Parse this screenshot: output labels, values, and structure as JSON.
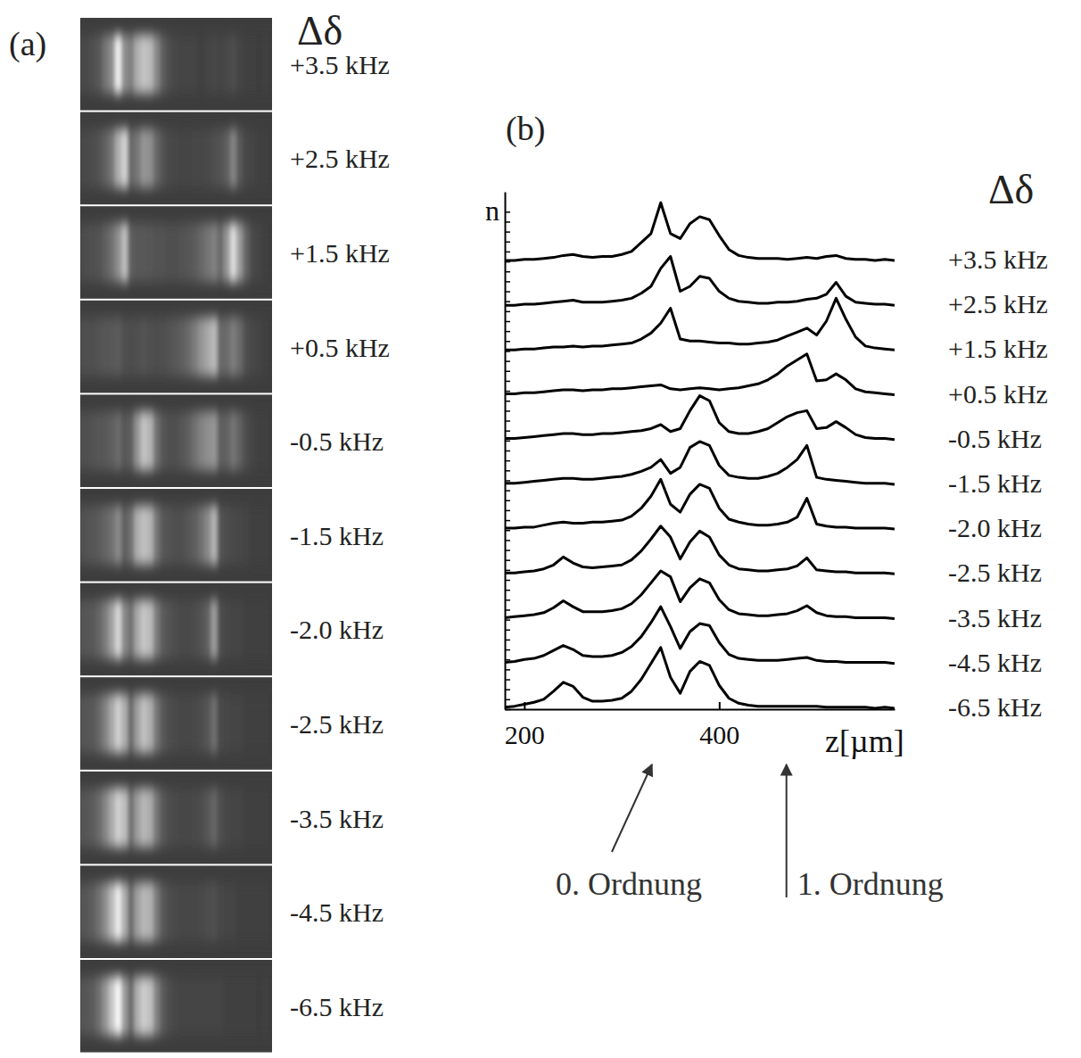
{
  "chart_data": {
    "type": "line",
    "panel_labels": [
      "(a)",
      "(b)"
    ],
    "legend_title": "Δδ",
    "xlabel": "z[µm]",
    "ylabel": "n",
    "xlim": [
      180,
      580
    ],
    "xticks": [
      200,
      400
    ],
    "ylim": [
      0,
      52
    ],
    "yticks": [
      0,
      1,
      2,
      3,
      4,
      5,
      6,
      7,
      8,
      9,
      10,
      11,
      12,
      13,
      14,
      15,
      16,
      17,
      18,
      19,
      20,
      21,
      22,
      23,
      24,
      25,
      26,
      27,
      28,
      29,
      30,
      31,
      32,
      33,
      34,
      35,
      36,
      37,
      38,
      39,
      40,
      41,
      42,
      43,
      44,
      45,
      46,
      47,
      48,
      49,
      50
    ],
    "tick_labels": "x",
    "x": [
      180,
      190,
      200,
      210,
      220,
      230,
      240,
      250,
      260,
      270,
      280,
      290,
      300,
      310,
      320,
      330,
      340,
      350,
      360,
      370,
      380,
      390,
      400,
      410,
      420,
      430,
      440,
      450,
      460,
      470,
      480,
      490,
      500,
      510,
      520,
      530,
      540,
      550,
      560,
      570,
      580
    ],
    "series": [
      {
        "name": "+3.5 kHz",
        "color": "#000000",
        "values": [
          0.1,
          0.1,
          0.2,
          0.2,
          0.3,
          0.4,
          0.6,
          0.7,
          0.5,
          0.4,
          0.5,
          0.5,
          0.7,
          1.0,
          1.9,
          2.8,
          5.9,
          2.8,
          2.3,
          3.8,
          4.5,
          4.2,
          2.6,
          1.2,
          0.6,
          0.4,
          0.3,
          0.3,
          0.3,
          0.2,
          0.3,
          0.4,
          0.3,
          0.5,
          0.6,
          0.3,
          0.2,
          0.2,
          0.1,
          0.2,
          0.1
        ]
      },
      {
        "name": "+2.5 kHz",
        "color": "#000000",
        "values": [
          0.1,
          0.1,
          0.2,
          0.2,
          0.3,
          0.4,
          0.5,
          0.6,
          0.4,
          0.4,
          0.4,
          0.5,
          0.6,
          0.8,
          1.3,
          2.0,
          3.8,
          5.0,
          1.5,
          2.0,
          3.0,
          2.8,
          1.5,
          0.8,
          0.5,
          0.4,
          0.3,
          0.3,
          0.4,
          0.4,
          0.5,
          0.7,
          0.8,
          1.2,
          2.4,
          1.0,
          0.4,
          0.3,
          0.2,
          0.2,
          0.1
        ]
      },
      {
        "name": "+1.5 kHz",
        "color": "#000000",
        "values": [
          0.1,
          0.1,
          0.2,
          0.2,
          0.3,
          0.4,
          0.4,
          0.5,
          0.4,
          0.5,
          0.5,
          0.6,
          0.7,
          0.8,
          1.2,
          1.8,
          2.8,
          4.3,
          1.2,
          1.0,
          1.0,
          0.9,
          0.8,
          0.8,
          0.7,
          0.7,
          0.8,
          0.9,
          1.1,
          1.5,
          1.9,
          2.3,
          1.6,
          3.0,
          5.3,
          3.2,
          1.4,
          0.5,
          0.3,
          0.2,
          0.1
        ]
      },
      {
        "name": "+0.5 kHz",
        "color": "#000000",
        "values": [
          0.2,
          0.2,
          0.3,
          0.3,
          0.4,
          0.5,
          0.6,
          0.6,
          0.5,
          0.6,
          0.6,
          0.7,
          0.7,
          0.8,
          0.9,
          1.0,
          1.1,
          0.7,
          0.6,
          0.7,
          0.8,
          0.7,
          0.6,
          0.7,
          0.8,
          1.0,
          1.2,
          1.6,
          2.2,
          3.0,
          3.6,
          4.2,
          1.5,
          1.6,
          2.2,
          1.6,
          0.7,
          0.4,
          0.3,
          0.2,
          0.1
        ]
      },
      {
        "name": "-0.5 kHz",
        "color": "#000000",
        "values": [
          0.2,
          0.2,
          0.3,
          0.4,
          0.5,
          0.6,
          0.7,
          0.7,
          0.6,
          0.6,
          0.7,
          0.7,
          0.8,
          0.9,
          1.0,
          1.2,
          1.6,
          0.9,
          1.2,
          3.0,
          4.5,
          4.0,
          1.8,
          0.9,
          0.7,
          0.7,
          0.9,
          1.2,
          1.8,
          2.4,
          2.8,
          3.0,
          1.2,
          1.3,
          1.9,
          1.3,
          0.6,
          0.3,
          0.2,
          0.2,
          0.1
        ]
      },
      {
        "name": "-1.5 kHz",
        "color": "#000000",
        "values": [
          0.2,
          0.2,
          0.3,
          0.4,
          0.5,
          0.6,
          0.7,
          0.7,
          0.6,
          0.6,
          0.7,
          0.8,
          0.9,
          1.1,
          1.4,
          1.8,
          2.6,
          1.2,
          1.8,
          3.8,
          4.4,
          4.0,
          2.0,
          1.0,
          0.8,
          0.7,
          0.7,
          0.9,
          1.2,
          1.8,
          2.6,
          4.0,
          0.8,
          0.6,
          0.5,
          0.4,
          0.3,
          0.2,
          0.2,
          0.2,
          0.1
        ]
      },
      {
        "name": "-2.0 kHz",
        "color": "#000000",
        "values": [
          0.2,
          0.2,
          0.3,
          0.3,
          0.5,
          0.7,
          0.8,
          0.7,
          0.7,
          0.8,
          0.8,
          0.9,
          1.0,
          1.4,
          2.2,
          3.4,
          5.1,
          2.6,
          1.8,
          3.6,
          4.6,
          4.2,
          2.2,
          1.1,
          0.8,
          0.6,
          0.5,
          0.5,
          0.6,
          0.8,
          1.3,
          3.2,
          0.6,
          0.4,
          0.3,
          0.3,
          0.2,
          0.2,
          0.2,
          0.2,
          0.1
        ]
      },
      {
        "name": "-2.5 kHz",
        "color": "#000000",
        "values": [
          0.2,
          0.2,
          0.3,
          0.4,
          0.6,
          1.0,
          1.8,
          1.2,
          0.8,
          0.7,
          0.8,
          0.9,
          1.0,
          1.5,
          2.4,
          3.6,
          4.9,
          3.8,
          1.6,
          3.3,
          4.4,
          3.8,
          2.0,
          1.0,
          0.6,
          0.5,
          0.4,
          0.4,
          0.5,
          0.6,
          0.9,
          1.7,
          0.5,
          0.4,
          0.3,
          0.3,
          0.2,
          0.2,
          0.2,
          0.2,
          0.1
        ]
      },
      {
        "name": "-3.5 kHz",
        "color": "#000000",
        "values": [
          0.2,
          0.3,
          0.4,
          0.5,
          0.7,
          1.2,
          1.9,
          1.3,
          0.8,
          0.8,
          0.8,
          0.9,
          1.1,
          1.6,
          2.5,
          3.7,
          4.9,
          4.3,
          1.8,
          3.2,
          4.1,
          3.7,
          2.0,
          1.0,
          0.6,
          0.5,
          0.4,
          0.4,
          0.5,
          0.6,
          0.9,
          1.4,
          0.7,
          0.4,
          0.3,
          0.3,
          0.2,
          0.2,
          0.2,
          0.2,
          0.1
        ]
      },
      {
        "name": "-4.5 kHz",
        "color": "#000000",
        "values": [
          0.2,
          0.3,
          0.5,
          0.6,
          0.9,
          1.4,
          1.9,
          1.5,
          0.9,
          0.8,
          0.8,
          0.9,
          1.2,
          1.8,
          2.8,
          4.2,
          5.8,
          3.8,
          1.6,
          3.3,
          4.1,
          3.9,
          2.2,
          1.0,
          0.6,
          0.5,
          0.4,
          0.4,
          0.4,
          0.5,
          0.6,
          0.7,
          0.4,
          0.3,
          0.3,
          0.2,
          0.2,
          0.2,
          0.2,
          0.2,
          0.1
        ]
      },
      {
        "name": "-6.5 kHz",
        "color": "#000000",
        "values": [
          0.2,
          0.3,
          0.5,
          0.7,
          1.0,
          1.8,
          2.7,
          2.3,
          1.2,
          0.8,
          0.8,
          0.9,
          1.1,
          1.8,
          3.0,
          4.6,
          6.2,
          3.2,
          1.6,
          3.8,
          4.8,
          4.4,
          2.4,
          1.1,
          0.6,
          0.4,
          0.3,
          0.3,
          0.3,
          0.3,
          0.3,
          0.3,
          0.3,
          0.2,
          0.2,
          0.2,
          0.2,
          0.2,
          0.1,
          0.2,
          0.1
        ]
      }
    ],
    "annotations": [
      {
        "text": "0. Ordnung",
        "x": 331
      },
      {
        "text": "1. Ordnung",
        "x": 469
      }
    ]
  }
}
